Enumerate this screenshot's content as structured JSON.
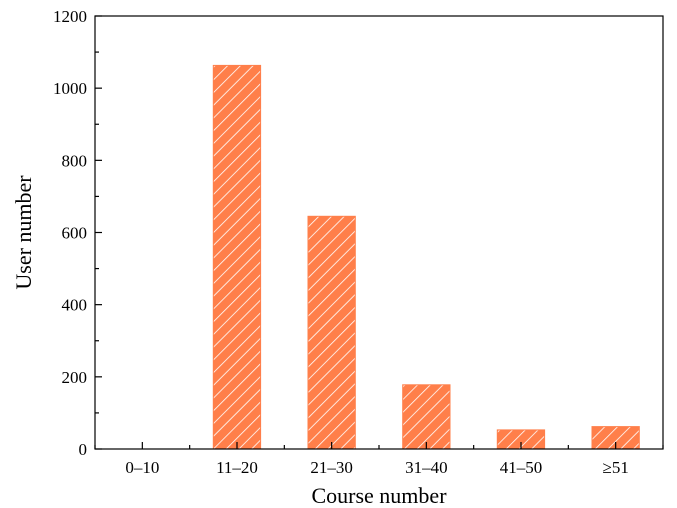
{
  "chart_data": {
    "type": "bar",
    "xlabel": "Course number",
    "ylabel": "User number",
    "categories": [
      "0–10",
      "11–20",
      "21–30",
      "31–40",
      "41–50",
      "≥51"
    ],
    "values": [
      0,
      1063,
      645,
      178,
      53,
      62
    ],
    "ylim": [
      0,
      1200
    ],
    "yticks": [
      "0",
      "200",
      "400",
      "600",
      "800",
      "1000",
      "1200"
    ],
    "grid": false,
    "legend": "none",
    "bar_color": "#FF7F4A",
    "hatch_color": "#FFFFFF",
    "axis_color": "#000000"
  }
}
